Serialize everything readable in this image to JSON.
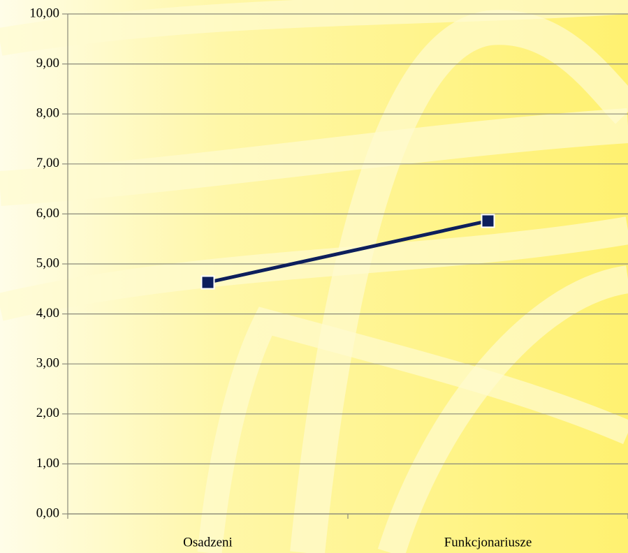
{
  "chart_data": {
    "type": "line",
    "categories": [
      "Osadzeni",
      "Funkcjonariusze"
    ],
    "values": [
      4.63,
      5.86
    ],
    "color": "#0d1f5c",
    "ylim": [
      0,
      10
    ],
    "yticks": [
      {
        "value": 0,
        "label": "0,00"
      },
      {
        "value": 1,
        "label": "1,00"
      },
      {
        "value": 2,
        "label": "2,00"
      },
      {
        "value": 3,
        "label": "3,00"
      },
      {
        "value": 4,
        "label": "4,00"
      },
      {
        "value": 5,
        "label": "5,00"
      },
      {
        "value": 6,
        "label": "6,00"
      },
      {
        "value": 7,
        "label": "7,00"
      },
      {
        "value": 8,
        "label": "8,00"
      },
      {
        "value": 9,
        "label": "9,00"
      },
      {
        "value": 10,
        "label": "10,00"
      }
    ],
    "grid": true
  }
}
